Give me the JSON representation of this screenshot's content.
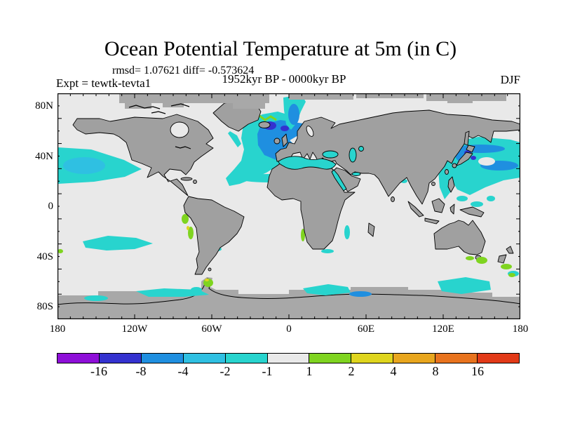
{
  "title": "Ocean Potential Temperature at 5m (in C)",
  "stats_line": "rmsd= 1.07621 diff= -0.573624",
  "period_line": "1952kyr BP - 0000kyr BP",
  "experiment_label": "Expt = tewtk-tevta1",
  "season_label": "DJF",
  "y_axis": {
    "tick_labels": [
      "80N",
      "40N",
      "0",
      "40S",
      "80S"
    ]
  },
  "x_axis": {
    "tick_labels": [
      "180",
      "120W",
      "60W",
      "0",
      "60E",
      "120E",
      "180"
    ]
  },
  "colorbar": {
    "labels": [
      "-16",
      "-8",
      "-4",
      "-2",
      "-1",
      "1",
      "2",
      "4",
      "8",
      "16"
    ]
  },
  "palette": {
    "purple": "#8E0FD8",
    "indigo": "#3432CF",
    "blue": "#1F8FE0",
    "skyblue": "#2FC0E2",
    "cyan": "#28D4CE",
    "neutral": "#E9E9E9",
    "green": "#7FD420",
    "yellow": "#DFD51E",
    "orangeyellow": "#E8A61E",
    "orange": "#E8731E",
    "red": "#E23A18",
    "ocean": "#E9E9E9",
    "land": "#A0A0A0",
    "landmask": "#A8A8A8"
  },
  "chart_data": {
    "type": "heatmap",
    "subtype": "filled-contour-world-map",
    "title": "Ocean Potential Temperature at 5m (in C)",
    "annotations": {
      "rmsd": 1.07621,
      "diff": -0.573624,
      "difference_of": "1952kyr BP - 0000kyr BP",
      "experiment": "tewtk-tevta1",
      "season": "DJF"
    },
    "projection": "equirectangular",
    "x_range_deg": [
      -180,
      180
    ],
    "y_range_deg": [
      -90,
      90
    ],
    "x_tick_labels": [
      "180",
      "120W",
      "60W",
      "0",
      "60E",
      "120E",
      "180"
    ],
    "y_tick_labels": [
      "80N",
      "40N",
      "0",
      "40S",
      "80S"
    ],
    "contour_levels_degC": [
      -16,
      -8,
      -4,
      -2,
      -1,
      1,
      2,
      4,
      8,
      16
    ],
    "level_colors": [
      "#8E0FD8",
      "#3432CF",
      "#1F8FE0",
      "#2FC0E2",
      "#28D4CE",
      "#E9E9E9",
      "#7FD420",
      "#DFD51E",
      "#E8A61E",
      "#E8731E",
      "#E23A18"
    ],
    "legend_position": "bottom",
    "notable_regions": [
      {
        "region": "North Atlantic subpolar gyre",
        "anomaly_degC": "-8 to -4 with spots below -8"
      },
      {
        "region": "Norwegian Sea",
        "anomaly_degC": "-8 to -4"
      },
      {
        "region": "Northeast Pacific around 40N",
        "anomaly_degC": "-2 to -1"
      },
      {
        "region": "Kuroshio / NW Pacific off Japan",
        "anomaly_degC": "-8 to -2"
      },
      {
        "region": "Mediterranean, Black, Caspian, Red Seas",
        "anomaly_degC": "-2 to -1"
      },
      {
        "region": "South Pacific around 40S",
        "anomaly_degC": "-2 to -1"
      },
      {
        "region": "Southern Ocean patches near 60S",
        "anomaly_degC": "-4 to -1"
      },
      {
        "region": "Peru-Chile coast, Namibia coast, around New Zealand, Antarctic Peninsula",
        "anomaly_degC": "+1 to +4"
      },
      {
        "region": "Most of tropical and subtropical ocean",
        "anomaly_degC": "-1 to +1 (neutral)"
      }
    ]
  }
}
